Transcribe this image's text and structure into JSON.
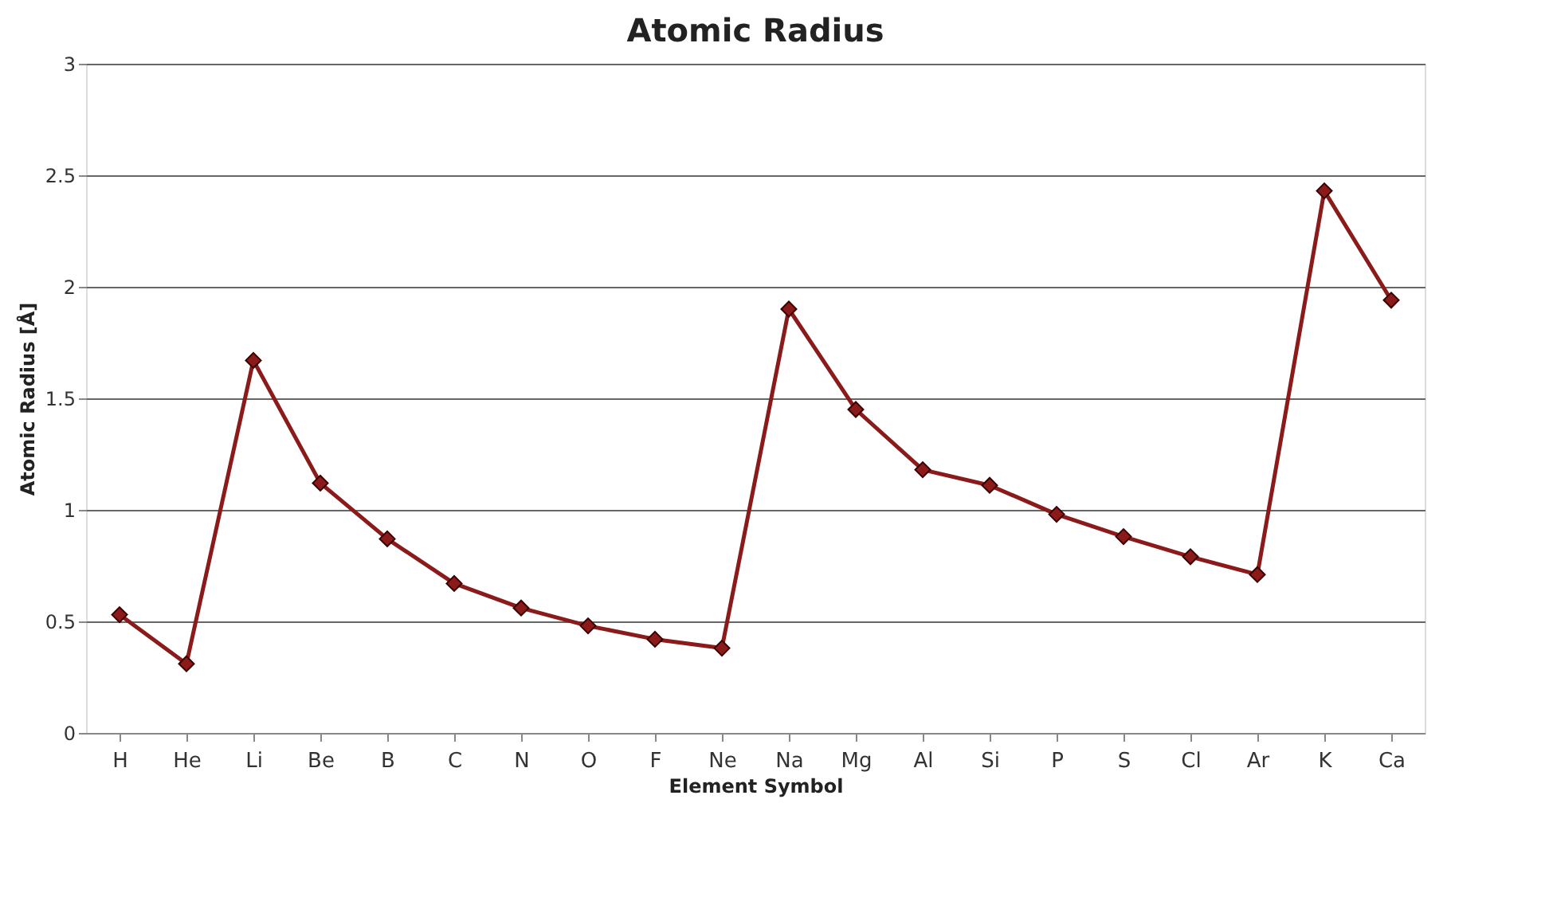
{
  "chart_data": {
    "type": "line",
    "title": "Atomic Radius",
    "xlabel": "Element Symbol",
    "ylabel": "Atomic Radius [Å]",
    "categories": [
      "H",
      "He",
      "Li",
      "Be",
      "B",
      "C",
      "N",
      "O",
      "F",
      "Ne",
      "Na",
      "Mg",
      "Al",
      "Si",
      "P",
      "S",
      "Cl",
      "Ar",
      "K",
      "Ca"
    ],
    "series": [
      {
        "color": "#8b1a1a",
        "values": [
          0.53,
          0.31,
          1.67,
          1.12,
          0.87,
          0.67,
          0.56,
          0.48,
          0.42,
          0.38,
          1.9,
          1.45,
          1.18,
          1.11,
          0.98,
          0.88,
          0.79,
          0.71,
          2.43,
          1.94
        ]
      }
    ],
    "ylim": [
      0,
      3
    ],
    "yticks": [
      0,
      0.5,
      1,
      1.5,
      2,
      2.5,
      3
    ],
    "grid": "y",
    "marker": "diamond",
    "line_style": "solid"
  }
}
